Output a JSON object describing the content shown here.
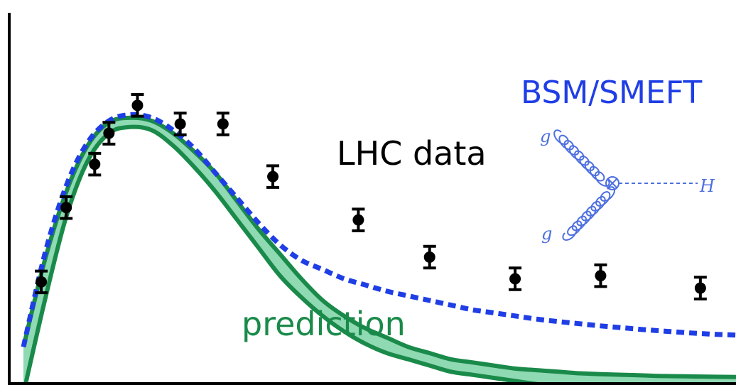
{
  "chart_data": {
    "type": "line",
    "title": "",
    "xlabel": "",
    "ylabel": "",
    "xlim": [
      0,
      100
    ],
    "ylim": [
      0,
      100
    ],
    "grid": false,
    "axes": [
      "left",
      "bottom"
    ],
    "colors": {
      "band_fill": "#8fd9b3",
      "band_edge": "#1a8a4a",
      "bsm_line": "#1f3ee6",
      "data": "#000000"
    },
    "series": [
      {
        "name": "prediction",
        "style": "band",
        "x": [
          0,
          3,
          6,
          9,
          12,
          15,
          18,
          21,
          24,
          27,
          30,
          33,
          36,
          39,
          42,
          45,
          48,
          51,
          54,
          57,
          60,
          63,
          66,
          69,
          72,
          75,
          78,
          81,
          84,
          87,
          90,
          93,
          96,
          100
        ],
        "lower": [
          -5,
          25,
          52,
          70,
          79,
          81,
          80,
          75,
          68,
          60,
          51,
          42,
          33,
          26,
          20,
          15,
          11,
          8,
          6,
          4,
          2,
          1,
          0,
          -1,
          -2,
          -2.5,
          -3,
          -3.5,
          -3.8,
          -4,
          -4.2,
          -4.4,
          -4.5,
          -4.6
        ],
        "upper": [
          10,
          38,
          60,
          75,
          82.5,
          84,
          83,
          79,
          73,
          66,
          57,
          48,
          40,
          32,
          25,
          20,
          16,
          13,
          10,
          8,
          6,
          5,
          4,
          3,
          2.5,
          2,
          1.5,
          1.2,
          1,
          0.8,
          0.6,
          0.5,
          0.4,
          0.3
        ]
      },
      {
        "name": "BSM/SMEFT",
        "style": "dashed",
        "x": [
          0,
          3,
          6,
          9,
          12,
          15,
          18,
          21,
          24,
          27,
          30,
          33,
          36,
          39,
          42,
          45,
          48,
          51,
          54,
          57,
          60,
          63,
          66,
          69,
          72,
          75,
          78,
          81,
          84,
          87,
          90,
          93,
          96,
          100
        ],
        "y": [
          10,
          40,
          62,
          76,
          83,
          85,
          84,
          80,
          74,
          66,
          58,
          50,
          43,
          38,
          35,
          32,
          30,
          28,
          26.5,
          25,
          23.5,
          22,
          21,
          20,
          19,
          18.2,
          17.5,
          16.8,
          16.2,
          15.6,
          15.1,
          14.6,
          14.2,
          13.8
        ]
      },
      {
        "name": "LHC data",
        "style": "points",
        "x": [
          2.5,
          6,
          10,
          12,
          16,
          22,
          28,
          35,
          47,
          57,
          69,
          81,
          95
        ],
        "y": [
          31,
          55,
          69,
          79,
          88,
          82,
          82,
          65,
          51,
          39,
          32,
          33,
          29
        ],
        "err": [
          3.5,
          3.5,
          3.5,
          3.5,
          3.5,
          3.5,
          3.5,
          3.5,
          3.5,
          3.5,
          3.5,
          3.5,
          3.5
        ]
      }
    ],
    "annotations": [
      {
        "text": "LHC data"
      },
      {
        "text": "prediction"
      },
      {
        "text": "BSM/SMEFT"
      }
    ],
    "feynman": {
      "top_gluon": "g",
      "bottom_gluon": "g",
      "higgs": "H"
    }
  }
}
